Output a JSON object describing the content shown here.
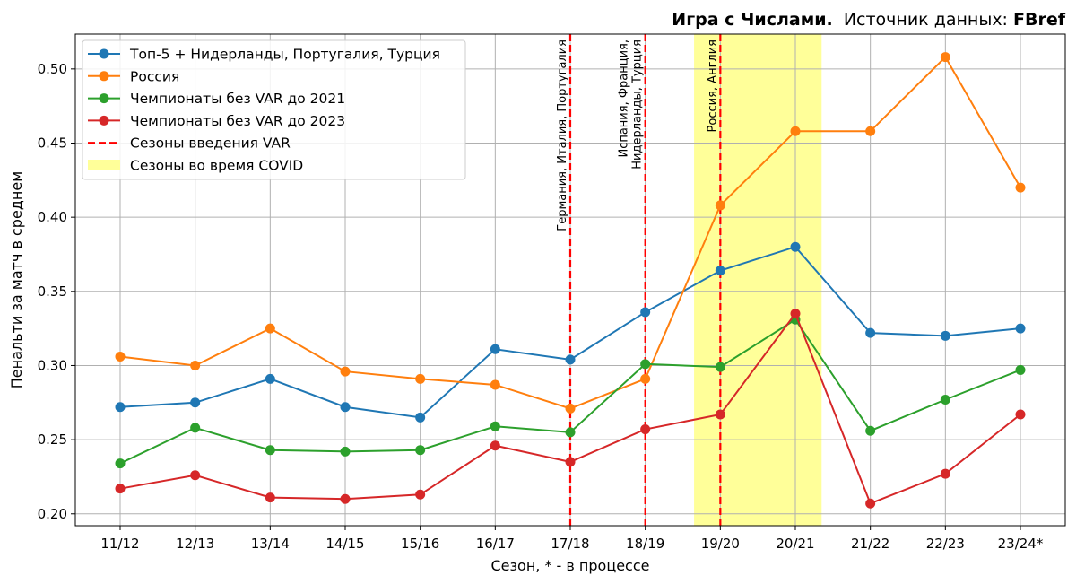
{
  "header": {
    "title_bold": "Игра с Числами.",
    "source_prefix": "Источник данных: ",
    "source_name": "FBref"
  },
  "chart_data": {
    "type": "line",
    "categories": [
      "11/12",
      "12/13",
      "13/14",
      "14/15",
      "15/16",
      "16/17",
      "17/18",
      "18/19",
      "19/20",
      "20/21",
      "21/22",
      "22/23",
      "23/24*"
    ],
    "xlabel": "Сезон, * - в процессе",
    "ylabel": "Пенальти за матч в среднем",
    "ylim": [
      0.192,
      0.5235
    ],
    "yticks": [
      0.2,
      0.25,
      0.3,
      0.35,
      0.4,
      0.45,
      0.5
    ],
    "grid": true,
    "legend_position": "top-left",
    "series": [
      {
        "name": "Топ-5 + Нидерланды, Португалия, Турция",
        "color": "#1f77b4",
        "values": [
          0.272,
          0.275,
          0.291,
          0.272,
          0.265,
          0.311,
          0.304,
          0.336,
          0.364,
          0.38,
          0.322,
          0.32,
          0.325
        ]
      },
      {
        "name": "Россия",
        "color": "#ff7f0e",
        "values": [
          0.306,
          0.3,
          0.325,
          0.296,
          0.291,
          0.287,
          0.271,
          0.291,
          0.408,
          0.458,
          0.458,
          0.508,
          0.42
        ]
      },
      {
        "name": "Чемпионаты без VAR до 2021",
        "color": "#2ca02c",
        "values": [
          0.234,
          0.258,
          0.243,
          0.242,
          0.243,
          0.259,
          0.255,
          0.301,
          0.299,
          0.331,
          0.256,
          0.277,
          0.297
        ]
      },
      {
        "name": "Чемпионаты без VAR до 2023",
        "color": "#d62728",
        "values": [
          0.217,
          0.226,
          0.211,
          0.21,
          0.213,
          0.246,
          0.235,
          0.257,
          0.267,
          0.335,
          0.207,
          0.227,
          0.267
        ]
      }
    ],
    "var_lines": {
      "legend": "Сезоны введения VAR",
      "color": "#ff0000",
      "lines": [
        {
          "season": "17/18",
          "labels": [
            "Германия, Италия, Португалия"
          ]
        },
        {
          "season": "18/19",
          "labels": [
            "Испания, Франция,",
            "Нидерланды, Турция"
          ]
        },
        {
          "season": "19/20",
          "labels": [
            "Россия, Англия"
          ]
        }
      ]
    },
    "covid_span": {
      "legend": "Сезоны во время COVID",
      "color": "#ffff99",
      "from": "19/20",
      "to": "20/21"
    }
  }
}
